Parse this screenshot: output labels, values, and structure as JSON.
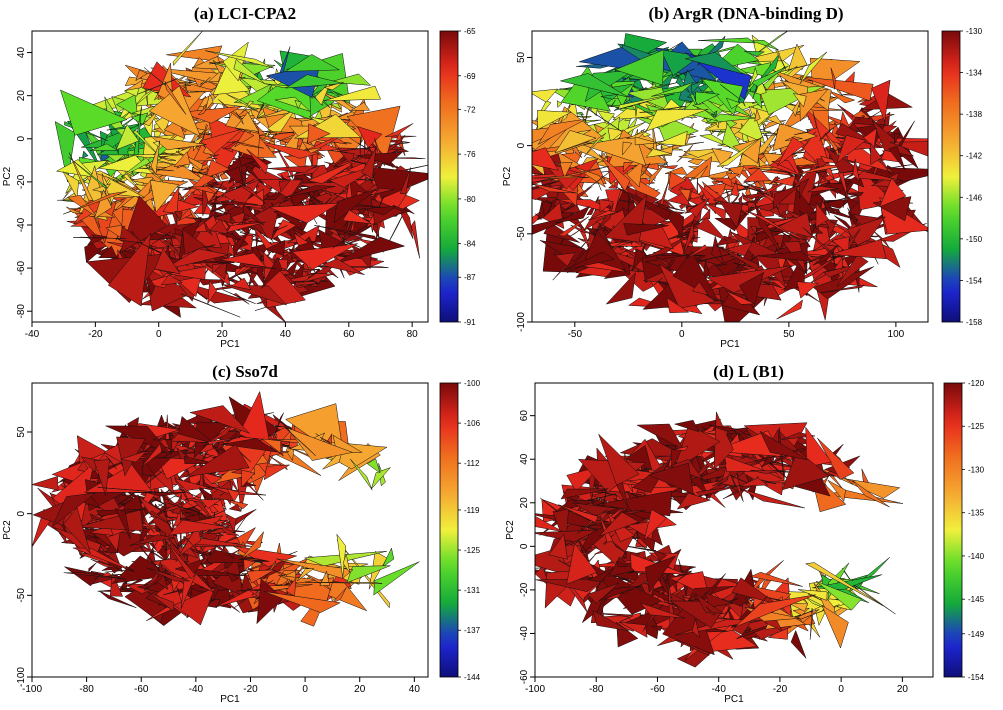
{
  "chart_data": [
    {
      "type": "heatmap",
      "title": "(a) LCI-CPA2",
      "xlabel": "PC1",
      "ylabel": "PC2",
      "xlim": [
        -40,
        85
      ],
      "ylim": [
        -85,
        50
      ],
      "xticks": [
        -40,
        -20,
        0,
        20,
        40,
        60,
        80
      ],
      "yticks": [
        -80,
        -60,
        -40,
        -20,
        0,
        20,
        40
      ],
      "colorbar_ticks": [
        -65,
        -69,
        -72,
        -76,
        -80,
        -84,
        -87,
        -91
      ],
      "colorbar_range": [
        -91,
        -65
      ]
    },
    {
      "type": "heatmap",
      "title": "(b) ArgR (DNA-binding D)",
      "xlabel": "PC1",
      "ylabel": "PC2",
      "xlim": [
        -70,
        115
      ],
      "ylim": [
        -100,
        65
      ],
      "xticks": [
        -50,
        0,
        50,
        100
      ],
      "yticks": [
        -100,
        -50,
        0,
        50
      ],
      "colorbar_ticks": [
        -130,
        -134,
        -138,
        -142,
        -146,
        -150,
        -154,
        -158
      ],
      "colorbar_range": [
        -158,
        -130
      ]
    },
    {
      "type": "heatmap",
      "title": "(c) Sso7d",
      "xlabel": "PC1",
      "ylabel": "PC2",
      "xlim": [
        -100,
        45
      ],
      "ylim": [
        -100,
        80
      ],
      "xticks": [
        -100,
        -80,
        -60,
        -40,
        -20,
        0,
        20,
        40
      ],
      "yticks": [
        -100,
        -50,
        0,
        50
      ],
      "colorbar_ticks": [
        -100,
        -106,
        -112,
        -119,
        -125,
        -131,
        -137,
        -144
      ],
      "colorbar_range": [
        -144,
        -100
      ]
    },
    {
      "type": "heatmap",
      "title": "(d) L (B1)",
      "xlabel": "PC1",
      "ylabel": "PC2",
      "xlim": [
        -100,
        30
      ],
      "ylim": [
        -60,
        75
      ],
      "xticks": [
        -100,
        -80,
        -60,
        -40,
        -20,
        0,
        20
      ],
      "yticks": [
        -60,
        -40,
        -20,
        0,
        20,
        40,
        60
      ],
      "colorbar_ticks": [
        -120,
        -125,
        -130,
        -135,
        -140,
        -145,
        -149,
        -154
      ],
      "colorbar_range": [
        -154,
        -120
      ]
    }
  ]
}
